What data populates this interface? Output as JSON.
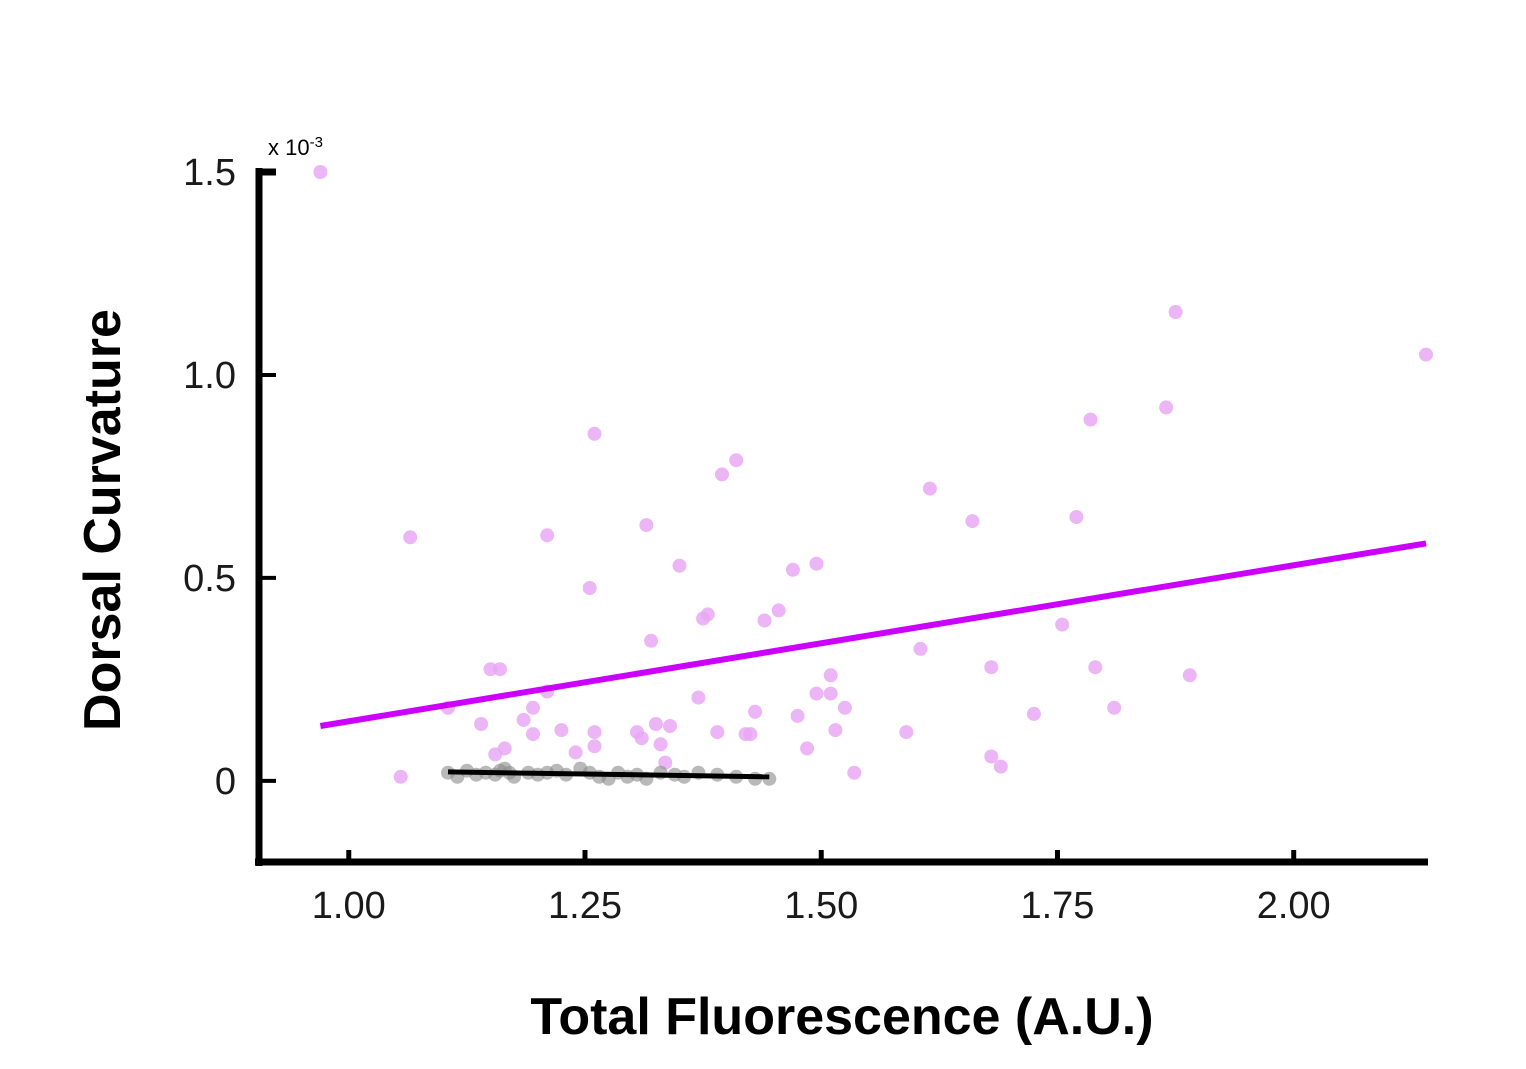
{
  "chart_data": {
    "type": "scatter",
    "xlabel": "Total Fluorescence (A.U.)",
    "ylabel": "Dorsal Curvature",
    "y_multiplier": "x 10",
    "y_multiplier_exp": "-3",
    "xlim": [
      0.905,
      2.14
    ],
    "ylim": [
      -0.2,
      1.5
    ],
    "x_ticks": [
      1.0,
      1.25,
      1.5,
      1.75,
      2.0
    ],
    "x_tick_labels": [
      "1.00",
      "1.25",
      "1.50",
      "1.75",
      "2.00"
    ],
    "y_ticks": [
      0,
      0.5,
      1.0,
      1.5
    ],
    "y_tick_labels": [
      "0",
      "0.5",
      "1.0",
      "1.5"
    ],
    "grid": false,
    "series": [
      {
        "color": "#e9a8f3",
        "line_color": "#cc00ff",
        "fit": {
          "x": [
            0.97,
            2.14
          ],
          "y": [
            0.135,
            0.585
          ]
        },
        "points": [
          [
            0.97,
            1.5
          ],
          [
            1.055,
            0.01
          ],
          [
            1.065,
            0.6
          ],
          [
            1.105,
            0.18
          ],
          [
            1.14,
            0.14
          ],
          [
            1.15,
            0.275
          ],
          [
            1.16,
            0.275
          ],
          [
            1.155,
            0.065
          ],
          [
            1.165,
            0.08
          ],
          [
            1.185,
            0.15
          ],
          [
            1.195,
            0.18
          ],
          [
            1.195,
            0.115
          ],
          [
            1.21,
            0.22
          ],
          [
            1.21,
            0.605
          ],
          [
            1.225,
            0.125
          ],
          [
            1.24,
            0.07
          ],
          [
            1.255,
            0.475
          ],
          [
            1.26,
            0.855
          ],
          [
            1.26,
            0.085
          ],
          [
            1.26,
            0.12
          ],
          [
            1.305,
            0.12
          ],
          [
            1.31,
            0.105
          ],
          [
            1.315,
            0.63
          ],
          [
            1.32,
            0.345
          ],
          [
            1.325,
            0.14
          ],
          [
            1.33,
            0.09
          ],
          [
            1.335,
            0.045
          ],
          [
            1.34,
            0.135
          ],
          [
            1.35,
            0.53
          ],
          [
            1.37,
            0.205
          ],
          [
            1.375,
            0.4
          ],
          [
            1.38,
            0.41
          ],
          [
            1.39,
            0.12
          ],
          [
            1.395,
            0.755
          ],
          [
            1.41,
            0.79
          ],
          [
            1.42,
            0.115
          ],
          [
            1.425,
            0.115
          ],
          [
            1.43,
            0.17
          ],
          [
            1.44,
            0.395
          ],
          [
            1.455,
            0.42
          ],
          [
            1.47,
            0.52
          ],
          [
            1.475,
            0.16
          ],
          [
            1.485,
            0.08
          ],
          [
            1.495,
            0.215
          ],
          [
            1.495,
            0.535
          ],
          [
            1.51,
            0.26
          ],
          [
            1.51,
            0.215
          ],
          [
            1.515,
            0.125
          ],
          [
            1.525,
            0.18
          ],
          [
            1.535,
            0.02
          ],
          [
            1.59,
            0.12
          ],
          [
            1.605,
            0.325
          ],
          [
            1.615,
            0.72
          ],
          [
            1.66,
            0.64
          ],
          [
            1.68,
            0.28
          ],
          [
            1.68,
            0.06
          ],
          [
            1.69,
            0.035
          ],
          [
            1.725,
            0.165
          ],
          [
            1.755,
            0.385
          ],
          [
            1.77,
            0.65
          ],
          [
            1.785,
            0.89
          ],
          [
            1.79,
            0.28
          ],
          [
            1.81,
            0.18
          ],
          [
            1.865,
            0.92
          ],
          [
            1.875,
            1.155
          ],
          [
            1.89,
            0.26
          ],
          [
            2.14,
            1.05
          ]
        ]
      },
      {
        "color": "#8a8a8a",
        "line_color": "#000000",
        "fit": {
          "x": [
            1.105,
            1.445
          ],
          "y": [
            0.022,
            0.01
          ]
        },
        "points": [
          [
            1.105,
            0.02
          ],
          [
            1.115,
            0.01
          ],
          [
            1.125,
            0.025
          ],
          [
            1.135,
            0.015
          ],
          [
            1.145,
            0.02
          ],
          [
            1.155,
            0.015
          ],
          [
            1.16,
            0.025
          ],
          [
            1.165,
            0.03
          ],
          [
            1.17,
            0.02
          ],
          [
            1.175,
            0.01
          ],
          [
            1.19,
            0.02
          ],
          [
            1.2,
            0.015
          ],
          [
            1.21,
            0.02
          ],
          [
            1.22,
            0.025
          ],
          [
            1.23,
            0.015
          ],
          [
            1.245,
            0.03
          ],
          [
            1.255,
            0.02
          ],
          [
            1.265,
            0.01
          ],
          [
            1.275,
            0.005
          ],
          [
            1.285,
            0.02
          ],
          [
            1.295,
            0.01
          ],
          [
            1.305,
            0.015
          ],
          [
            1.315,
            0.005
          ],
          [
            1.33,
            0.02
          ],
          [
            1.345,
            0.015
          ],
          [
            1.355,
            0.01
          ],
          [
            1.37,
            0.02
          ],
          [
            1.39,
            0.015
          ],
          [
            1.41,
            0.01
          ],
          [
            1.43,
            0.005
          ],
          [
            1.445,
            0.005
          ]
        ]
      }
    ]
  }
}
